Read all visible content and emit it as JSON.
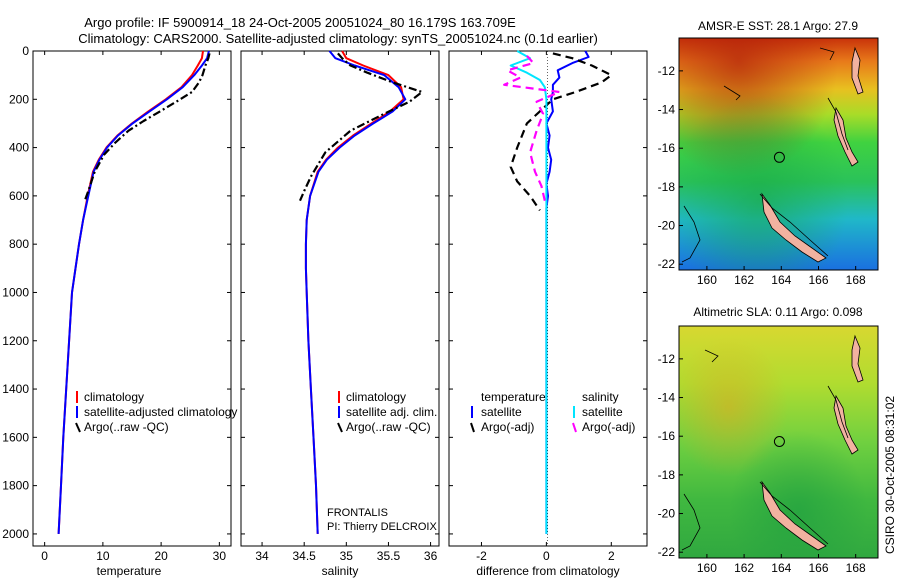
{
  "header": {
    "line1": "Argo profile: IF 5900914_18 24-Oct-2005 20051024_80 16.179S 163.709E",
    "line2": "Climatology: CARS2000. Satellite-adjusted climatology: synTS_20051024.nc (0.1d earlier)"
  },
  "side_label": "CSIRO 30-Oct-2005 08:31:02",
  "colors": {
    "climatology": "#ff0000",
    "satellite": "#0000ff",
    "argo": "#000000",
    "salinity_satellite": "#00e5ff",
    "salinity_argo": "#ff00ff",
    "land": "#f2b2a0"
  },
  "chart_data": [
    {
      "type": "line",
      "id": "temperature",
      "xlabel": "temperature",
      "ylabel": "",
      "xlim": [
        -2,
        32
      ],
      "ylim": [
        2050,
        0
      ],
      "xticks": [
        0,
        10,
        20,
        30
      ],
      "yticks": [
        0,
        200,
        400,
        600,
        800,
        1000,
        1200,
        1400,
        1600,
        1800,
        2000
      ],
      "legend": {
        "position": "lower-left",
        "entries": [
          "climatology",
          "satellite-adjusted climatology",
          "Argo(..raw -QC)"
        ]
      },
      "series": [
        {
          "name": "climatology",
          "style": "solid",
          "color": "#ff0000",
          "points": [
            [
              27.2,
              0
            ],
            [
              27,
              30
            ],
            [
              26.3,
              60
            ],
            [
              25.3,
              100
            ],
            [
              23.5,
              150
            ],
            [
              20.8,
              200
            ],
            [
              17.8,
              250
            ],
            [
              15,
              300
            ],
            [
              12.5,
              350
            ],
            [
              10.6,
              400
            ],
            [
              9.3,
              450
            ],
            [
              8.3,
              500
            ],
            [
              7.4,
              600
            ],
            [
              6.6,
              700
            ],
            [
              5.9,
              800
            ],
            [
              5.3,
              900
            ],
            [
              4.7,
              1000
            ],
            [
              4.2,
              1200
            ],
            [
              3.7,
              1400
            ],
            [
              3.2,
              1600
            ],
            [
              2.8,
              1800
            ],
            [
              2.4,
              2000
            ]
          ]
        },
        {
          "name": "satellite-adjusted climatology",
          "style": "solid",
          "color": "#0000ff",
          "points": [
            [
              28.2,
              0
            ],
            [
              27.9,
              30
            ],
            [
              27,
              60
            ],
            [
              25.7,
              100
            ],
            [
              23.7,
              150
            ],
            [
              21,
              200
            ],
            [
              18,
              250
            ],
            [
              15.1,
              300
            ],
            [
              12.6,
              350
            ],
            [
              10.7,
              400
            ],
            [
              9.4,
              450
            ],
            [
              8.4,
              500
            ],
            [
              7.5,
              600
            ],
            [
              6.6,
              700
            ],
            [
              5.9,
              800
            ],
            [
              5.3,
              900
            ],
            [
              4.7,
              1000
            ],
            [
              4.2,
              1200
            ],
            [
              3.7,
              1400
            ],
            [
              3.2,
              1600
            ],
            [
              2.8,
              1800
            ],
            [
              2.4,
              2000
            ]
          ]
        },
        {
          "name": "Argo(..raw -QC)",
          "style": "dashdot",
          "color": "#000000",
          "points": [
            [
              28.3,
              10
            ],
            [
              28.1,
              30
            ],
            [
              27.6,
              60
            ],
            [
              27.1,
              100
            ],
            [
              26.5,
              130
            ],
            [
              25.3,
              170
            ],
            [
              22.6,
              210
            ],
            [
              19.8,
              250
            ],
            [
              17,
              290
            ],
            [
              14.4,
              330
            ],
            [
              12.1,
              380
            ],
            [
              10.2,
              430
            ],
            [
              8.6,
              500
            ],
            [
              7.5,
              580
            ],
            [
              6.9,
              620
            ]
          ]
        }
      ]
    },
    {
      "type": "line",
      "id": "salinity",
      "xlabel": "salinity",
      "ylabel": "",
      "xlim": [
        33.75,
        36.1
      ],
      "ylim": [
        2050,
        0
      ],
      "xticks": [
        34,
        34.5,
        35,
        35.5,
        36
      ],
      "legend": {
        "position": "lower-right",
        "entries": [
          "climatology",
          "satellite adj. clim.",
          "Argo(..raw -QC)"
        ]
      },
      "annotation": [
        "FRONTALIS",
        "PI: Thierry DELCROIX"
      ],
      "series": [
        {
          "name": "climatology",
          "style": "solid",
          "color": "#ff0000",
          "points": [
            [
              34.95,
              0
            ],
            [
              35,
              30
            ],
            [
              35.2,
              60
            ],
            [
              35.5,
              100
            ],
            [
              35.65,
              150
            ],
            [
              35.68,
              200
            ],
            [
              35.52,
              250
            ],
            [
              35.3,
              300
            ],
            [
              35.08,
              350
            ],
            [
              34.9,
              400
            ],
            [
              34.76,
              450
            ],
            [
              34.66,
              500
            ],
            [
              34.57,
              600
            ],
            [
              34.53,
              700
            ],
            [
              34.52,
              800
            ],
            [
              34.52,
              900
            ],
            [
              34.53,
              1000
            ],
            [
              34.55,
              1200
            ],
            [
              34.58,
              1400
            ],
            [
              34.61,
              1600
            ],
            [
              34.64,
              1800
            ],
            [
              34.66,
              2000
            ]
          ]
        },
        {
          "name": "satellite adj. clim.",
          "style": "solid",
          "color": "#0000ff",
          "points": [
            [
              34.8,
              0
            ],
            [
              34.87,
              30
            ],
            [
              35.1,
              60
            ],
            [
              35.45,
              100
            ],
            [
              35.62,
              150
            ],
            [
              35.7,
              200
            ],
            [
              35.55,
              250
            ],
            [
              35.32,
              300
            ],
            [
              35.1,
              350
            ],
            [
              34.92,
              400
            ],
            [
              34.77,
              450
            ],
            [
              34.67,
              500
            ],
            [
              34.57,
              600
            ],
            [
              34.53,
              700
            ],
            [
              34.52,
              800
            ],
            [
              34.52,
              900
            ],
            [
              34.53,
              1000
            ],
            [
              34.55,
              1200
            ],
            [
              34.58,
              1400
            ],
            [
              34.61,
              1600
            ],
            [
              34.64,
              1800
            ],
            [
              34.66,
              2000
            ]
          ]
        },
        {
          "name": "Argo(..raw -QC)",
          "style": "dashdot",
          "color": "#000000",
          "points": [
            [
              34.9,
              10
            ],
            [
              34.95,
              30
            ],
            [
              35.05,
              60
            ],
            [
              35.25,
              90
            ],
            [
              35.55,
              130
            ],
            [
              35.9,
              170
            ],
            [
              35.75,
              210
            ],
            [
              35.45,
              260
            ],
            [
              35.05,
              330
            ],
            [
              34.75,
              420
            ],
            [
              34.58,
              520
            ],
            [
              34.5,
              580
            ],
            [
              34.45,
              620
            ]
          ]
        }
      ]
    },
    {
      "type": "line",
      "id": "difference",
      "xlabel": "difference from climatology",
      "ylabel": "",
      "xlim": [
        -3,
        3.1
      ],
      "ylim": [
        2050,
        0
      ],
      "xticks": [
        -2,
        0,
        2
      ],
      "legend": {
        "position": "lower-center",
        "groups": [
          {
            "title": "temperature",
            "entries": [
              "satellite",
              "Argo(-adj)"
            ]
          },
          {
            "title": "salinity",
            "entries": [
              "satellite",
              "Argo(-adj)"
            ]
          }
        ]
      },
      "series": [
        {
          "name": "satellite",
          "group": "temperature",
          "style": "solid",
          "color": "#0000ff",
          "points": [
            [
              1.2,
              0
            ],
            [
              1.3,
              25
            ],
            [
              0.8,
              50
            ],
            [
              0.35,
              80
            ],
            [
              0.4,
              110
            ],
            [
              0.2,
              140
            ],
            [
              0.2,
              170
            ],
            [
              0.15,
              200
            ],
            [
              0.2,
              250
            ],
            [
              0,
              300
            ],
            [
              0.1,
              350
            ],
            [
              0.05,
              400
            ],
            [
              0.15,
              450
            ],
            [
              0.1,
              500
            ],
            [
              0,
              550
            ],
            [
              0.05,
              600
            ],
            [
              0,
              650
            ],
            [
              0,
              800
            ],
            [
              0,
              1000
            ],
            [
              0,
              2000
            ]
          ]
        },
        {
          "name": "Argo(-adj)",
          "group": "temperature",
          "style": "dashed",
          "color": "#000000",
          "points": [
            [
              0.2,
              10
            ],
            [
              0.8,
              30
            ],
            [
              1.4,
              60
            ],
            [
              2,
              100
            ],
            [
              1.7,
              130
            ],
            [
              0.9,
              170
            ],
            [
              0.2,
              200
            ],
            [
              -0.6,
              300
            ],
            [
              -0.9,
              400
            ],
            [
              -1.1,
              480
            ],
            [
              -0.9,
              540
            ],
            [
              -0.5,
              600
            ],
            [
              -0.2,
              660
            ]
          ]
        },
        {
          "name": "satellite",
          "group": "salinity",
          "style": "solid",
          "color": "#00e5ff",
          "points": [
            [
              -0.9,
              0
            ],
            [
              -0.5,
              30
            ],
            [
              -1.1,
              60
            ],
            [
              -0.6,
              90
            ],
            [
              -0.2,
              120
            ],
            [
              -0.05,
              150
            ],
            [
              0,
              200
            ],
            [
              0,
              800
            ],
            [
              0,
              2000
            ]
          ]
        },
        {
          "name": "Argo(-adj)",
          "group": "salinity",
          "style": "dashed",
          "color": "#ff00ff",
          "points": [
            [
              -0.6,
              20
            ],
            [
              -0.4,
              50
            ],
            [
              -1.2,
              80
            ],
            [
              -0.8,
              110
            ],
            [
              -1.3,
              140
            ],
            [
              0.4,
              170
            ],
            [
              -0.3,
              210
            ],
            [
              -0.1,
              260
            ],
            [
              -0.3,
              330
            ],
            [
              -0.5,
              420
            ],
            [
              -0.35,
              500
            ],
            [
              -0.15,
              560
            ],
            [
              -0.05,
              620
            ]
          ]
        }
      ]
    },
    {
      "type": "heatmap",
      "id": "sst_map",
      "title": "AMSR-E SST: 28.1 Argo: 27.9",
      "xlim": [
        158.5,
        169.2
      ],
      "ylim": [
        -22.3,
        -10.3
      ],
      "xticks": [
        160,
        162,
        164,
        166,
        168
      ],
      "yticks": [
        -12,
        -14,
        -16,
        -18,
        -20,
        -22
      ],
      "marker": {
        "lon": 163.709,
        "lat": -16.179
      }
    },
    {
      "type": "heatmap",
      "id": "sla_map",
      "title": "Altimetric SLA: 0.11 Argo: 0.098",
      "xlim": [
        158.5,
        169.2
      ],
      "ylim": [
        -22.3,
        -10.3
      ],
      "xticks": [
        160,
        162,
        164,
        166,
        168
      ],
      "yticks": [
        -12,
        -14,
        -16,
        -18,
        -20,
        -22
      ],
      "marker": {
        "lon": 163.709,
        "lat": -16.179
      }
    }
  ]
}
